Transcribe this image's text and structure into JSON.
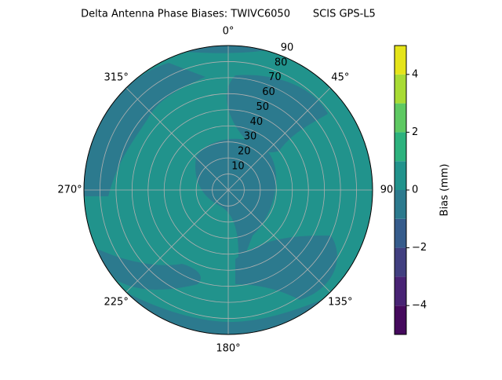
{
  "chart_data": {
    "type": "polar-contour",
    "title": "Delta Antenna Phase Biases: TWIVC6050       SCIS GPS-L5",
    "thetaticks": [
      {
        "value": 0,
        "label": "0°"
      },
      {
        "value": 45,
        "label": "45°"
      },
      {
        "value": 90,
        "label": "90"
      },
      {
        "value": 135,
        "label": "135°"
      },
      {
        "value": 180,
        "label": "180°"
      },
      {
        "value": 225,
        "label": "225°"
      },
      {
        "value": 270,
        "label": "270°"
      },
      {
        "value": 315,
        "label": "315°"
      }
    ],
    "rlim": [
      0,
      90
    ],
    "rticks": [
      10,
      20,
      30,
      40,
      50,
      60,
      70,
      80,
      90
    ],
    "grid": true,
    "levels": [
      -5,
      -4,
      -3,
      -2,
      -1,
      0,
      1,
      2,
      3,
      4,
      5
    ],
    "colors": [
      "#450a5d",
      "#482374",
      "#413f80",
      "#365c8c",
      "#2c7a8e",
      "#21938c",
      "#2db27d",
      "#5ec962",
      "#a8db34",
      "#e5e419"
    ],
    "colorbar_label": "Bias (mm)",
    "colorbar_ticks": [
      {
        "value": -4,
        "label": "−4"
      },
      {
        "value": -2,
        "label": "−2"
      },
      {
        "value": 0,
        "label": "0"
      },
      {
        "value": 2,
        "label": "2"
      },
      {
        "value": 4,
        "label": "4"
      }
    ]
  }
}
